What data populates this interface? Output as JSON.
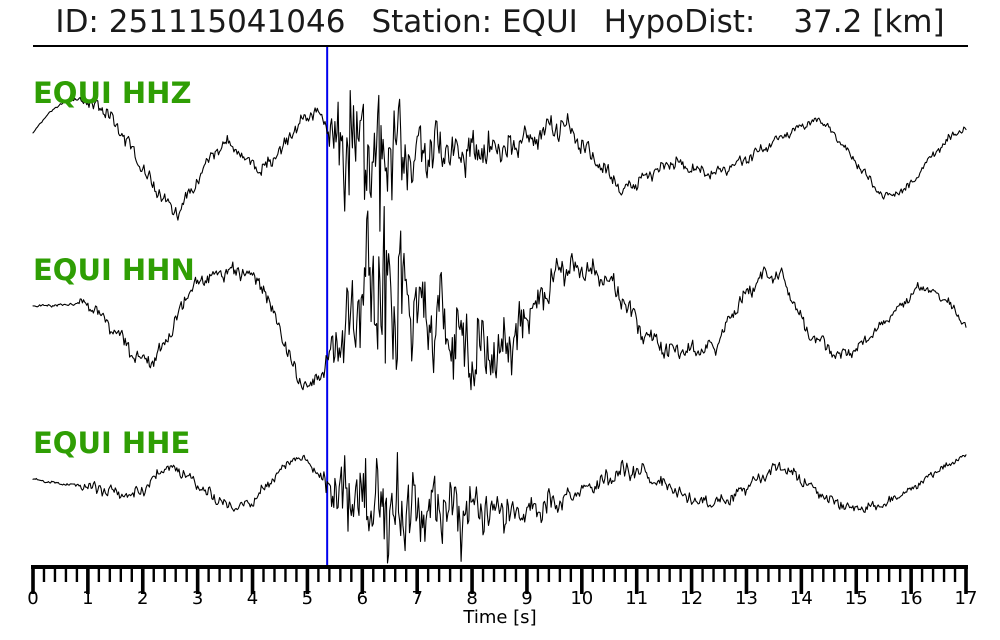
{
  "header": {
    "id_label": "ID:",
    "id_value": "251115041046",
    "station_label": "Station:",
    "station_value": "EQUI",
    "hypodist_label": "HypoDist:",
    "hypodist_value": "37.2",
    "hypodist_unit": "[km]"
  },
  "chart_data": {
    "type": "line",
    "title": "ID: 251115041046  Station: EQUI  HypoDist: 37.2 [km]",
    "xlabel": "Time [s]",
    "x_range": [
      0,
      17
    ],
    "x_major_tick_s": 1,
    "x_minor_tick_s": 0.2,
    "x_tick_labels": [
      "0",
      "1",
      "2",
      "3",
      "4",
      "5",
      "6",
      "7",
      "8",
      "9",
      "10",
      "11",
      "12",
      "13",
      "14",
      "15",
      "16",
      "17"
    ],
    "grid": false,
    "legend": "none",
    "pick_time_s": 5.36,
    "colors": {
      "trace": "#000000",
      "pick_line": "#0000ee",
      "channel_label": "#2f9e04",
      "axis": "#000000",
      "title_text": "#1a1a1a"
    },
    "traces": [
      {
        "id": "HHZ",
        "label": "EQUI HHZ",
        "seed": 11,
        "slow_keypoints_t_ypx": [
          [
            0,
            133
          ],
          [
            0.3,
            112
          ],
          [
            0.67,
            99
          ],
          [
            1.0,
            102
          ],
          [
            1.35,
            112
          ],
          [
            1.7,
            140
          ],
          [
            2.1,
            178
          ],
          [
            2.5,
            208
          ],
          [
            2.65,
            212
          ],
          [
            3.0,
            180
          ],
          [
            3.3,
            152
          ],
          [
            3.55,
            143
          ],
          [
            3.9,
            160
          ],
          [
            4.15,
            170
          ],
          [
            4.5,
            152
          ],
          [
            4.9,
            120
          ],
          [
            5.15,
            113
          ],
          [
            5.36,
            123
          ],
          [
            5.6,
            148
          ],
          [
            6.2,
            150
          ],
          [
            7.0,
            158
          ],
          [
            7.6,
            152
          ],
          [
            8.2,
            152
          ],
          [
            8.7,
            150
          ],
          [
            9.3,
            132
          ],
          [
            9.7,
            124
          ],
          [
            10.2,
            158
          ],
          [
            10.75,
            192
          ],
          [
            11.2,
            175
          ],
          [
            11.65,
            163
          ],
          [
            12.1,
            170
          ],
          [
            12.45,
            174
          ],
          [
            12.9,
            162
          ],
          [
            13.5,
            142
          ],
          [
            13.9,
            128
          ],
          [
            14.35,
            119
          ],
          [
            14.8,
            148
          ],
          [
            15.5,
            198
          ],
          [
            15.9,
            190
          ],
          [
            16.4,
            155
          ],
          [
            16.8,
            133
          ],
          [
            17,
            128
          ]
        ],
        "noise_envelope_t_amp": [
          [
            0,
            1
          ],
          [
            0.8,
            2
          ],
          [
            1.05,
            7
          ],
          [
            1.6,
            8
          ],
          [
            2.3,
            8
          ],
          [
            3.2,
            7
          ],
          [
            4.2,
            7
          ],
          [
            5.0,
            8
          ],
          [
            5.3,
            9
          ],
          [
            5.45,
            26
          ],
          [
            5.6,
            55
          ],
          [
            5.9,
            62
          ],
          [
            6.3,
            58
          ],
          [
            6.7,
            45
          ],
          [
            7.1,
            32
          ],
          [
            7.6,
            24
          ],
          [
            8.2,
            20
          ],
          [
            8.8,
            16
          ],
          [
            9.4,
            13
          ],
          [
            10.2,
            9
          ],
          [
            11,
            8
          ],
          [
            12,
            7
          ],
          [
            13,
            6
          ],
          [
            14,
            5
          ],
          [
            15,
            4.5
          ],
          [
            16,
            4
          ],
          [
            17,
            4
          ]
        ],
        "spikes_t_dy": [
          [
            5.78,
            -58
          ],
          [
            6.32,
            80
          ]
        ]
      },
      {
        "id": "HHN",
        "label": "EQUI HHN",
        "seed": 23,
        "slow_keypoints_t_ypx": [
          [
            0,
            306
          ],
          [
            0.5,
            305
          ],
          [
            0.95,
            302
          ],
          [
            1.4,
            325
          ],
          [
            1.9,
            357
          ],
          [
            2.2,
            362
          ],
          [
            2.5,
            335
          ],
          [
            2.8,
            295
          ],
          [
            3.1,
            278
          ],
          [
            3.5,
            272
          ],
          [
            3.85,
            272
          ],
          [
            4.15,
            282
          ],
          [
            4.5,
            330
          ],
          [
            4.85,
            382
          ],
          [
            5.1,
            386
          ],
          [
            5.36,
            363
          ],
          [
            5.6,
            340
          ],
          [
            5.9,
            310
          ],
          [
            6.15,
            295
          ],
          [
            6.5,
            290
          ],
          [
            7.0,
            305
          ],
          [
            7.5,
            330
          ],
          [
            8.0,
            348
          ],
          [
            8.6,
            352
          ],
          [
            9.1,
            310
          ],
          [
            9.6,
            268
          ],
          [
            10.1,
            272
          ],
          [
            10.55,
            282
          ],
          [
            11.1,
            332
          ],
          [
            11.6,
            352
          ],
          [
            12.1,
            350
          ],
          [
            12.45,
            345
          ],
          [
            12.9,
            300
          ],
          [
            13.35,
            272
          ],
          [
            13.65,
            277
          ],
          [
            14.1,
            330
          ],
          [
            14.7,
            357
          ],
          [
            15.1,
            345
          ],
          [
            15.7,
            312
          ],
          [
            16.15,
            286
          ],
          [
            16.6,
            297
          ],
          [
            17,
            326
          ]
        ],
        "noise_envelope_t_amp": [
          [
            0,
            1
          ],
          [
            0.8,
            2
          ],
          [
            1.05,
            9
          ],
          [
            1.6,
            9
          ],
          [
            2.3,
            8
          ],
          [
            3.2,
            8
          ],
          [
            4.2,
            8
          ],
          [
            5.0,
            9
          ],
          [
            5.36,
            12
          ],
          [
            5.6,
            30
          ],
          [
            5.9,
            55
          ],
          [
            6.15,
            75
          ],
          [
            6.5,
            72
          ],
          [
            6.9,
            60
          ],
          [
            7.3,
            52
          ],
          [
            7.7,
            45
          ],
          [
            8.1,
            38
          ],
          [
            8.6,
            28
          ],
          [
            9.1,
            20
          ],
          [
            9.6,
            14
          ],
          [
            10.2,
            12
          ],
          [
            10.8,
            11
          ],
          [
            11.4,
            10
          ],
          [
            12.2,
            9
          ],
          [
            13,
            8
          ],
          [
            14,
            7
          ],
          [
            15,
            6
          ],
          [
            16,
            5
          ],
          [
            17,
            5
          ]
        ],
        "spikes_t_dy": [
          [
            6.08,
            -80
          ],
          [
            6.42,
            72
          ],
          [
            6.7,
            -65
          ]
        ]
      },
      {
        "id": "HHE",
        "label": "EQUI HHE",
        "seed": 37,
        "slow_keypoints_t_ypx": [
          [
            0,
            479
          ],
          [
            0.4,
            483
          ],
          [
            0.9,
            486
          ],
          [
            1.2,
            488
          ],
          [
            1.5,
            493
          ],
          [
            1.75,
            497
          ],
          [
            2.05,
            488
          ],
          [
            2.4,
            469
          ],
          [
            2.75,
            472
          ],
          [
            3.1,
            490
          ],
          [
            3.6,
            507
          ],
          [
            3.95,
            504
          ],
          [
            4.35,
            480
          ],
          [
            4.75,
            458
          ],
          [
            5.0,
            461
          ],
          [
            5.36,
            487
          ],
          [
            5.7,
            497
          ],
          [
            6.2,
            502
          ],
          [
            6.8,
            505
          ],
          [
            7.4,
            508
          ],
          [
            8.0,
            507
          ],
          [
            8.6,
            513
          ],
          [
            9.2,
            508
          ],
          [
            9.8,
            495
          ],
          [
            10.4,
            480
          ],
          [
            10.9,
            469
          ],
          [
            11.4,
            481
          ],
          [
            11.9,
            496
          ],
          [
            12.35,
            505
          ],
          [
            12.8,
            496
          ],
          [
            13.25,
            477
          ],
          [
            13.6,
            466
          ],
          [
            14.0,
            479
          ],
          [
            14.5,
            500
          ],
          [
            14.95,
            509
          ],
          [
            15.45,
            506
          ],
          [
            16.0,
            489
          ],
          [
            16.5,
            470
          ],
          [
            17,
            456
          ]
        ],
        "noise_envelope_t_amp": [
          [
            0,
            1
          ],
          [
            0.8,
            2
          ],
          [
            1.05,
            7
          ],
          [
            1.6,
            7
          ],
          [
            2.3,
            7
          ],
          [
            3.2,
            6
          ],
          [
            4.2,
            5
          ],
          [
            4.8,
            4
          ],
          [
            5.2,
            5
          ],
          [
            5.45,
            20
          ],
          [
            5.7,
            38
          ],
          [
            6.1,
            48
          ],
          [
            6.5,
            50
          ],
          [
            6.9,
            42
          ],
          [
            7.3,
            34
          ],
          [
            7.8,
            26
          ],
          [
            8.3,
            20
          ],
          [
            8.9,
            16
          ],
          [
            9.5,
            13
          ],
          [
            10.2,
            10
          ],
          [
            11,
            9
          ],
          [
            11.8,
            8
          ],
          [
            12.6,
            7
          ],
          [
            13.4,
            6
          ],
          [
            14.2,
            6
          ],
          [
            15,
            5
          ],
          [
            15.8,
            4
          ],
          [
            16.5,
            3.5
          ],
          [
            17,
            3
          ]
        ],
        "spikes_t_dy": [
          [
            6.05,
            -42
          ],
          [
            6.45,
            60
          ],
          [
            7.8,
            54
          ]
        ]
      }
    ]
  }
}
